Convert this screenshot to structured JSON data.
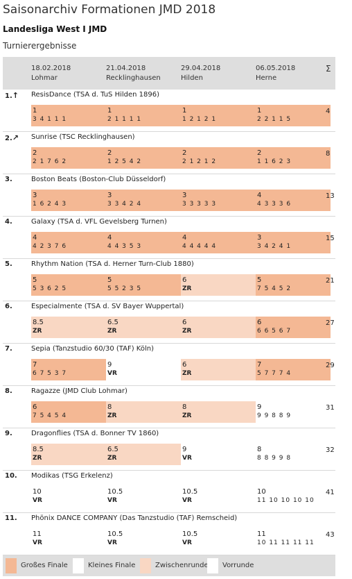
{
  "page": {
    "title": "Saisonarchiv Formationen JMD 2018",
    "subtitle": "Landesliga West I JMD",
    "section": "Turnierergebnisse"
  },
  "colors": {
    "gf": "#f4b894",
    "zr": "#f9d7c3",
    "kf": "#ffffff",
    "header": "#dedede"
  },
  "table": {
    "sum_label": "Σ",
    "columns": [
      {
        "date": "18.02.2018",
        "place": "Lohmar"
      },
      {
        "date": "21.04.2018",
        "place": "Recklinghausen"
      },
      {
        "date": "29.04.2018",
        "place": "Hilden"
      },
      {
        "date": "06.05.2018",
        "place": "Herne"
      }
    ],
    "teams": [
      {
        "rank": "1.",
        "arrow": "↑",
        "name": "ResisDance (TSA d. TuS Hilden 1896)",
        "total": "4",
        "results": [
          {
            "place": "1",
            "detail": "3 4 1 1 1",
            "type": "gf"
          },
          {
            "place": "1",
            "detail": "2 1 1 1 1",
            "type": "gf"
          },
          {
            "place": "1",
            "detail": "1 2 1 2 1",
            "type": "gf"
          },
          {
            "place": "1",
            "detail": "2 2 1 1 5",
            "type": "gf"
          }
        ]
      },
      {
        "rank": "2.",
        "arrow": "↗",
        "name": "Sunrise (TSC Recklinghausen)",
        "total": "8",
        "results": [
          {
            "place": "2",
            "detail": "2 1 7 6 2",
            "type": "gf"
          },
          {
            "place": "2",
            "detail": "1 2 5 4 2",
            "type": "gf"
          },
          {
            "place": "2",
            "detail": "2 1 2 1 2",
            "type": "gf"
          },
          {
            "place": "2",
            "detail": "1 1 6 2 3",
            "type": "gf"
          }
        ]
      },
      {
        "rank": "3.",
        "arrow": "",
        "name": "Boston Beats (Boston-Club Düsseldorf)",
        "total": "13",
        "results": [
          {
            "place": "3",
            "detail": "1 6 2 4 3",
            "type": "gf"
          },
          {
            "place": "3",
            "detail": "3 3 4 2 4",
            "type": "gf"
          },
          {
            "place": "3",
            "detail": "3 3 3 3 3",
            "type": "gf"
          },
          {
            "place": "4",
            "detail": "4 3 3 3 6",
            "type": "gf"
          }
        ]
      },
      {
        "rank": "4.",
        "arrow": "",
        "name": "Galaxy (TSA d. VFL Gevelsberg Turnen)",
        "total": "15",
        "results": [
          {
            "place": "4",
            "detail": "4 2 3 7 6",
            "type": "gf"
          },
          {
            "place": "4",
            "detail": "4 4 3 5 3",
            "type": "gf"
          },
          {
            "place": "4",
            "detail": "4 4 4 4 4",
            "type": "gf"
          },
          {
            "place": "3",
            "detail": "3 4 2 4 1",
            "type": "gf"
          }
        ]
      },
      {
        "rank": "5.",
        "arrow": "",
        "name": "Rhythm Nation (TSA d. Herner Turn-Club 1880)",
        "total": "21",
        "results": [
          {
            "place": "5",
            "detail": "5 3 6 2 5",
            "type": "gf"
          },
          {
            "place": "5",
            "detail": "5 5 2 3 5",
            "type": "gf"
          },
          {
            "place": "6",
            "detail": "ZR",
            "type": "zr"
          },
          {
            "place": "5",
            "detail": "7 5 4 5 2",
            "type": "gf"
          }
        ]
      },
      {
        "rank": "6.",
        "arrow": "",
        "name": "Especialmente (TSA d. SV Bayer Wuppertal)",
        "total": "27",
        "results": [
          {
            "place": "8.5",
            "detail": "ZR",
            "type": "zr"
          },
          {
            "place": "6.5",
            "detail": "ZR",
            "type": "zr"
          },
          {
            "place": "6",
            "detail": "ZR",
            "type": "zr"
          },
          {
            "place": "6",
            "detail": "6 6 5 6 7",
            "type": "gf"
          }
        ]
      },
      {
        "rank": "7.",
        "arrow": "",
        "name": "Sepia (Tanzstudio 60/30 (TAF) Köln)",
        "total": "29",
        "results": [
          {
            "place": "7",
            "detail": "6 7 5 3 7",
            "type": "gf"
          },
          {
            "place": "9",
            "detail": "VR",
            "type": "vr"
          },
          {
            "place": "6",
            "detail": "ZR",
            "type": "zr"
          },
          {
            "place": "7",
            "detail": "5 7 7 7 4",
            "type": "gf"
          }
        ]
      },
      {
        "rank": "8.",
        "arrow": "",
        "name": "Ragazze (JMD Club Lohmar)",
        "total": "31",
        "results": [
          {
            "place": "6",
            "detail": "7 5 4 5 4",
            "type": "gf"
          },
          {
            "place": "8",
            "detail": "ZR",
            "type": "zr"
          },
          {
            "place": "8",
            "detail": "ZR",
            "type": "zr"
          },
          {
            "place": "9",
            "detail": "9 9 8 8 9",
            "type": "kf"
          }
        ]
      },
      {
        "rank": "9.",
        "arrow": "",
        "name": "Dragonflies (TSA d. Bonner TV 1860)",
        "total": "32",
        "results": [
          {
            "place": "8.5",
            "detail": "ZR",
            "type": "zr"
          },
          {
            "place": "6.5",
            "detail": "ZR",
            "type": "zr"
          },
          {
            "place": "9",
            "detail": "VR",
            "type": "vr"
          },
          {
            "place": "8",
            "detail": "8 8 9 9 8",
            "type": "kf"
          }
        ]
      },
      {
        "rank": "10.",
        "arrow": "",
        "name": "Modikas (TSG Erkelenz)",
        "total": "41",
        "results": [
          {
            "place": "10",
            "detail": "VR",
            "type": "vr"
          },
          {
            "place": "10.5",
            "detail": "VR",
            "type": "vr"
          },
          {
            "place": "10.5",
            "detail": "VR",
            "type": "vr"
          },
          {
            "place": "10",
            "detail": "11 10 10 10 10",
            "type": "kf"
          }
        ]
      },
      {
        "rank": "11.",
        "arrow": "",
        "name": "Phönix DANCE COMPANY (Das Tanzstudio (TAF) Remscheid)",
        "total": "43",
        "results": [
          {
            "place": "11",
            "detail": "VR",
            "type": "vr"
          },
          {
            "place": "10.5",
            "detail": "VR",
            "type": "vr"
          },
          {
            "place": "10.5",
            "detail": "VR",
            "type": "vr"
          },
          {
            "place": "11",
            "detail": "10 11 11 11 11",
            "type": "kf"
          }
        ]
      }
    ]
  },
  "legend": [
    {
      "label": "Großes Finale",
      "type": "gf"
    },
    {
      "label": "Kleines Finale",
      "type": "kf"
    },
    {
      "label": "Zwischenrunde",
      "type": "zr"
    },
    {
      "label": "Vorrunde",
      "type": "vr"
    }
  ]
}
